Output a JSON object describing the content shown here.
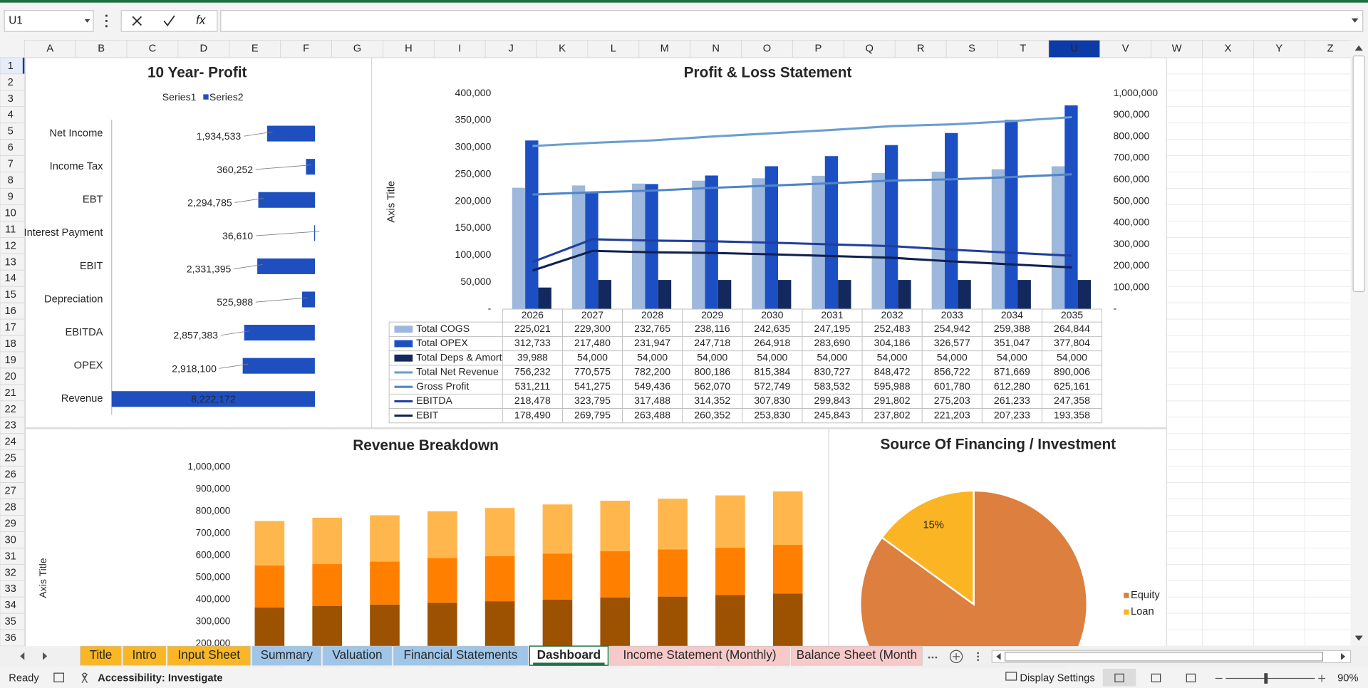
{
  "formula_bar": {
    "name_box": "U1",
    "function_icon": "fx"
  },
  "columns": [
    "A",
    "B",
    "C",
    "D",
    "E",
    "F",
    "G",
    "H",
    "I",
    "J",
    "K",
    "L",
    "M",
    "N",
    "O",
    "P",
    "Q",
    "R",
    "S",
    "T",
    "U",
    "V",
    "W",
    "X",
    "Y",
    "Z"
  ],
  "rows": [
    1,
    2,
    3,
    4,
    5,
    6,
    7,
    8,
    9,
    10,
    11,
    12,
    13,
    14,
    15,
    16,
    17,
    18,
    19,
    20,
    21,
    22,
    23,
    24,
    25,
    26,
    27,
    28,
    29,
    30,
    31,
    32,
    33,
    34,
    35,
    36
  ],
  "charts": [
    {
      "type": "bar",
      "orientation": "horizontal",
      "stacked": true,
      "title": "10 Year- Profit",
      "categories": [
        "Net Income",
        "Income Tax",
        "EBT",
        "Interest Payment",
        "EBIT",
        "Depreciation",
        "EBITDA",
        "OPEX",
        "Revenue"
      ],
      "xlim": [
        0,
        8222172
      ],
      "series": [
        {
          "name": "Series1",
          "color": "none",
          "values": [
            6290000,
            7860000,
            5930000,
            8190000,
            5890000,
            7700000,
            5360000,
            5300000,
            0
          ]
        },
        {
          "name": "Series2",
          "color": "#1f4fbf",
          "values": [
            1934533,
            360252,
            2294785,
            36610,
            2331395,
            525988,
            2857383,
            2918100,
            8222172
          ],
          "value_labels": [
            "1,934,533",
            "360,252",
            "2,294,785",
            "36,610",
            "2,331,395",
            "525,988",
            "2,857,383",
            "2,918,100",
            "8,222,172"
          ]
        }
      ]
    },
    {
      "type": "combo",
      "title": "Profit & Loss Statement",
      "y_label": "Axis Title",
      "categories": [
        "2026",
        "2027",
        "2028",
        "2029",
        "2030",
        "2031",
        "2032",
        "2033",
        "2034",
        "2035"
      ],
      "ylim": [
        0,
        400000
      ],
      "yticks": [
        {
          "value": 0,
          "label": "-"
        },
        {
          "value": 50000,
          "label": "50,000"
        },
        {
          "value": 100000,
          "label": "100,000"
        },
        {
          "value": 150000,
          "label": "150,000"
        },
        {
          "value": 200000,
          "label": "200,000"
        },
        {
          "value": 250000,
          "label": "250,000"
        },
        {
          "value": 300000,
          "label": "300,000"
        },
        {
          "value": 350000,
          "label": "350,000"
        },
        {
          "value": 400000,
          "label": "400,000"
        }
      ],
      "y2lim": [
        0,
        1000000
      ],
      "y2ticks": [
        {
          "value": 0,
          "label": "-"
        },
        {
          "value": 100000,
          "label": "100,000"
        },
        {
          "value": 200000,
          "label": "200,000"
        },
        {
          "value": 300000,
          "label": "300,000"
        },
        {
          "value": 400000,
          "label": "400,000"
        },
        {
          "value": 500000,
          "label": "500,000"
        },
        {
          "value": 600000,
          "label": "600,000"
        },
        {
          "value": 700000,
          "label": "700,000"
        },
        {
          "value": 800000,
          "label": "800,000"
        },
        {
          "value": 900000,
          "label": "900,000"
        },
        {
          "value": 1000000,
          "label": "1,000,000"
        }
      ],
      "series": [
        {
          "name": "Total COGS",
          "kind": "bar",
          "color": "#9db8dc",
          "values": [
            225021,
            229300,
            232765,
            238116,
            242635,
            247195,
            252483,
            254942,
            259388,
            264844
          ],
          "value_labels": [
            "225,021",
            "229,300",
            "232,765",
            "238,116",
            "242,635",
            "247,195",
            "252,483",
            "254,942",
            "259,388",
            "264,844"
          ]
        },
        {
          "name": "Total OPEX",
          "kind": "bar",
          "color": "#1c4fc4",
          "values": [
            312733,
            217480,
            231947,
            247718,
            264918,
            283690,
            304186,
            326577,
            351047,
            377804
          ],
          "value_labels": [
            "312,733",
            "217,480",
            "231,947",
            "247,718",
            "264,918",
            "283,690",
            "304,186",
            "326,577",
            "351,047",
            "377,804"
          ]
        },
        {
          "name": "Total Deps & Amort",
          "kind": "bar",
          "color": "#13295e",
          "values": [
            39988,
            54000,
            54000,
            54000,
            54000,
            54000,
            54000,
            54000,
            54000,
            54000
          ],
          "value_labels": [
            "39,988",
            "54,000",
            "54,000",
            "54,000",
            "54,000",
            "54,000",
            "54,000",
            "54,000",
            "54,000",
            "54,000"
          ]
        },
        {
          "name": "Total Net Revenue",
          "kind": "line",
          "axis": "y2",
          "color": "#6a9fd0",
          "values": [
            756232,
            770575,
            782200,
            800186,
            815384,
            830727,
            848472,
            856722,
            871669,
            890006
          ],
          "value_labels": [
            "756,232",
            "770,575",
            "782,200",
            "800,186",
            "815,384",
            "830,727",
            "848,472",
            "856,722",
            "871,669",
            "890,006"
          ]
        },
        {
          "name": "Gross Profit",
          "kind": "line",
          "axis": "y2",
          "color": "#4f86c6",
          "values": [
            531211,
            541275,
            549436,
            562070,
            572749,
            583532,
            595988,
            601780,
            612280,
            625161
          ],
          "value_labels": [
            "531,211",
            "541,275",
            "549,436",
            "562,070",
            "572,749",
            "583,532",
            "595,988",
            "601,780",
            "612,280",
            "625,161"
          ]
        },
        {
          "name": "EBITDA",
          "kind": "line",
          "axis": "y2",
          "color": "#1f3f9a",
          "values": [
            218478,
            323795,
            317488,
            314352,
            307830,
            299843,
            291802,
            275203,
            261233,
            247358
          ],
          "value_labels": [
            "218,478",
            "323,795",
            "317,488",
            "314,352",
            "307,830",
            "299,843",
            "291,802",
            "275,203",
            "261,233",
            "247,358"
          ]
        },
        {
          "name": "EBIT",
          "kind": "line",
          "axis": "y2",
          "color": "#0f2050",
          "values": [
            178490,
            269795,
            263488,
            260352,
            253830,
            245843,
            237802,
            221203,
            207233,
            193358
          ],
          "value_labels": [
            "178,490",
            "269,795",
            "263,488",
            "260,352",
            "253,830",
            "245,843",
            "237,802",
            "221,203",
            "207,233",
            "193,358"
          ]
        }
      ]
    },
    {
      "type": "bar",
      "stacked": true,
      "title": "Revenue Breakdown",
      "y_label": "Axis Title",
      "ylim": [
        0,
        1000000
      ],
      "yticks": [
        {
          "value": 200000,
          "label": "200,000"
        },
        {
          "value": 300000,
          "label": "300,000"
        },
        {
          "value": 400000,
          "label": "400,000"
        },
        {
          "value": 500000,
          "label": "500,000"
        },
        {
          "value": 600000,
          "label": "600,000"
        },
        {
          "value": 700000,
          "label": "700,000"
        },
        {
          "value": 800000,
          "label": "800,000"
        },
        {
          "value": 900000,
          "label": "900,000"
        },
        {
          "value": 1000000,
          "label": "1,000,000"
        }
      ],
      "series": [
        {
          "color": "#9c5200",
          "values": [
            365000,
            372000,
            378000,
            386000,
            393000,
            400000,
            410000,
            414000,
            421000,
            428000
          ]
        },
        {
          "color": "#ff8000",
          "values": [
            190000,
            189000,
            195000,
            203000,
            204000,
            209000,
            210000,
            214000,
            215000,
            220000
          ]
        },
        {
          "color": "#ffb74d",
          "values": [
            201000,
            210000,
            209000,
            211000,
            218000,
            222000,
            228000,
            229000,
            236000,
            242000
          ]
        }
      ]
    },
    {
      "type": "pie",
      "title": "Source Of Financing / Investment",
      "categories": [
        "Equity",
        "Loan"
      ],
      "values": [
        85,
        15
      ],
      "value_labels": [
        null,
        "15%"
      ],
      "colors": [
        "#dc7f3f",
        "#fbb424"
      ]
    }
  ],
  "tabs": [
    {
      "label": "Title",
      "color": "#f9b625"
    },
    {
      "label": "Intro",
      "color": "#f9b625"
    },
    {
      "label": "Input Sheet",
      "color": "#f9b625"
    },
    {
      "label": "Summary",
      "color": "#9fc5e8"
    },
    {
      "label": "Valuation",
      "color": "#9fc5e8"
    },
    {
      "label": "Financial Statements",
      "color": "#9fc5e8"
    },
    {
      "label": "Dashboard",
      "color": "#ffffff",
      "active": true
    },
    {
      "label": "Income Statement (Monthly)",
      "color": "#f8c9c9"
    },
    {
      "label": "Balance Sheet (Month",
      "color": "#f8c9c9"
    }
  ],
  "status": {
    "mode": "Ready",
    "accessibility": "Accessibility: Investigate",
    "display": "Display Settings",
    "zoom": "90%"
  }
}
